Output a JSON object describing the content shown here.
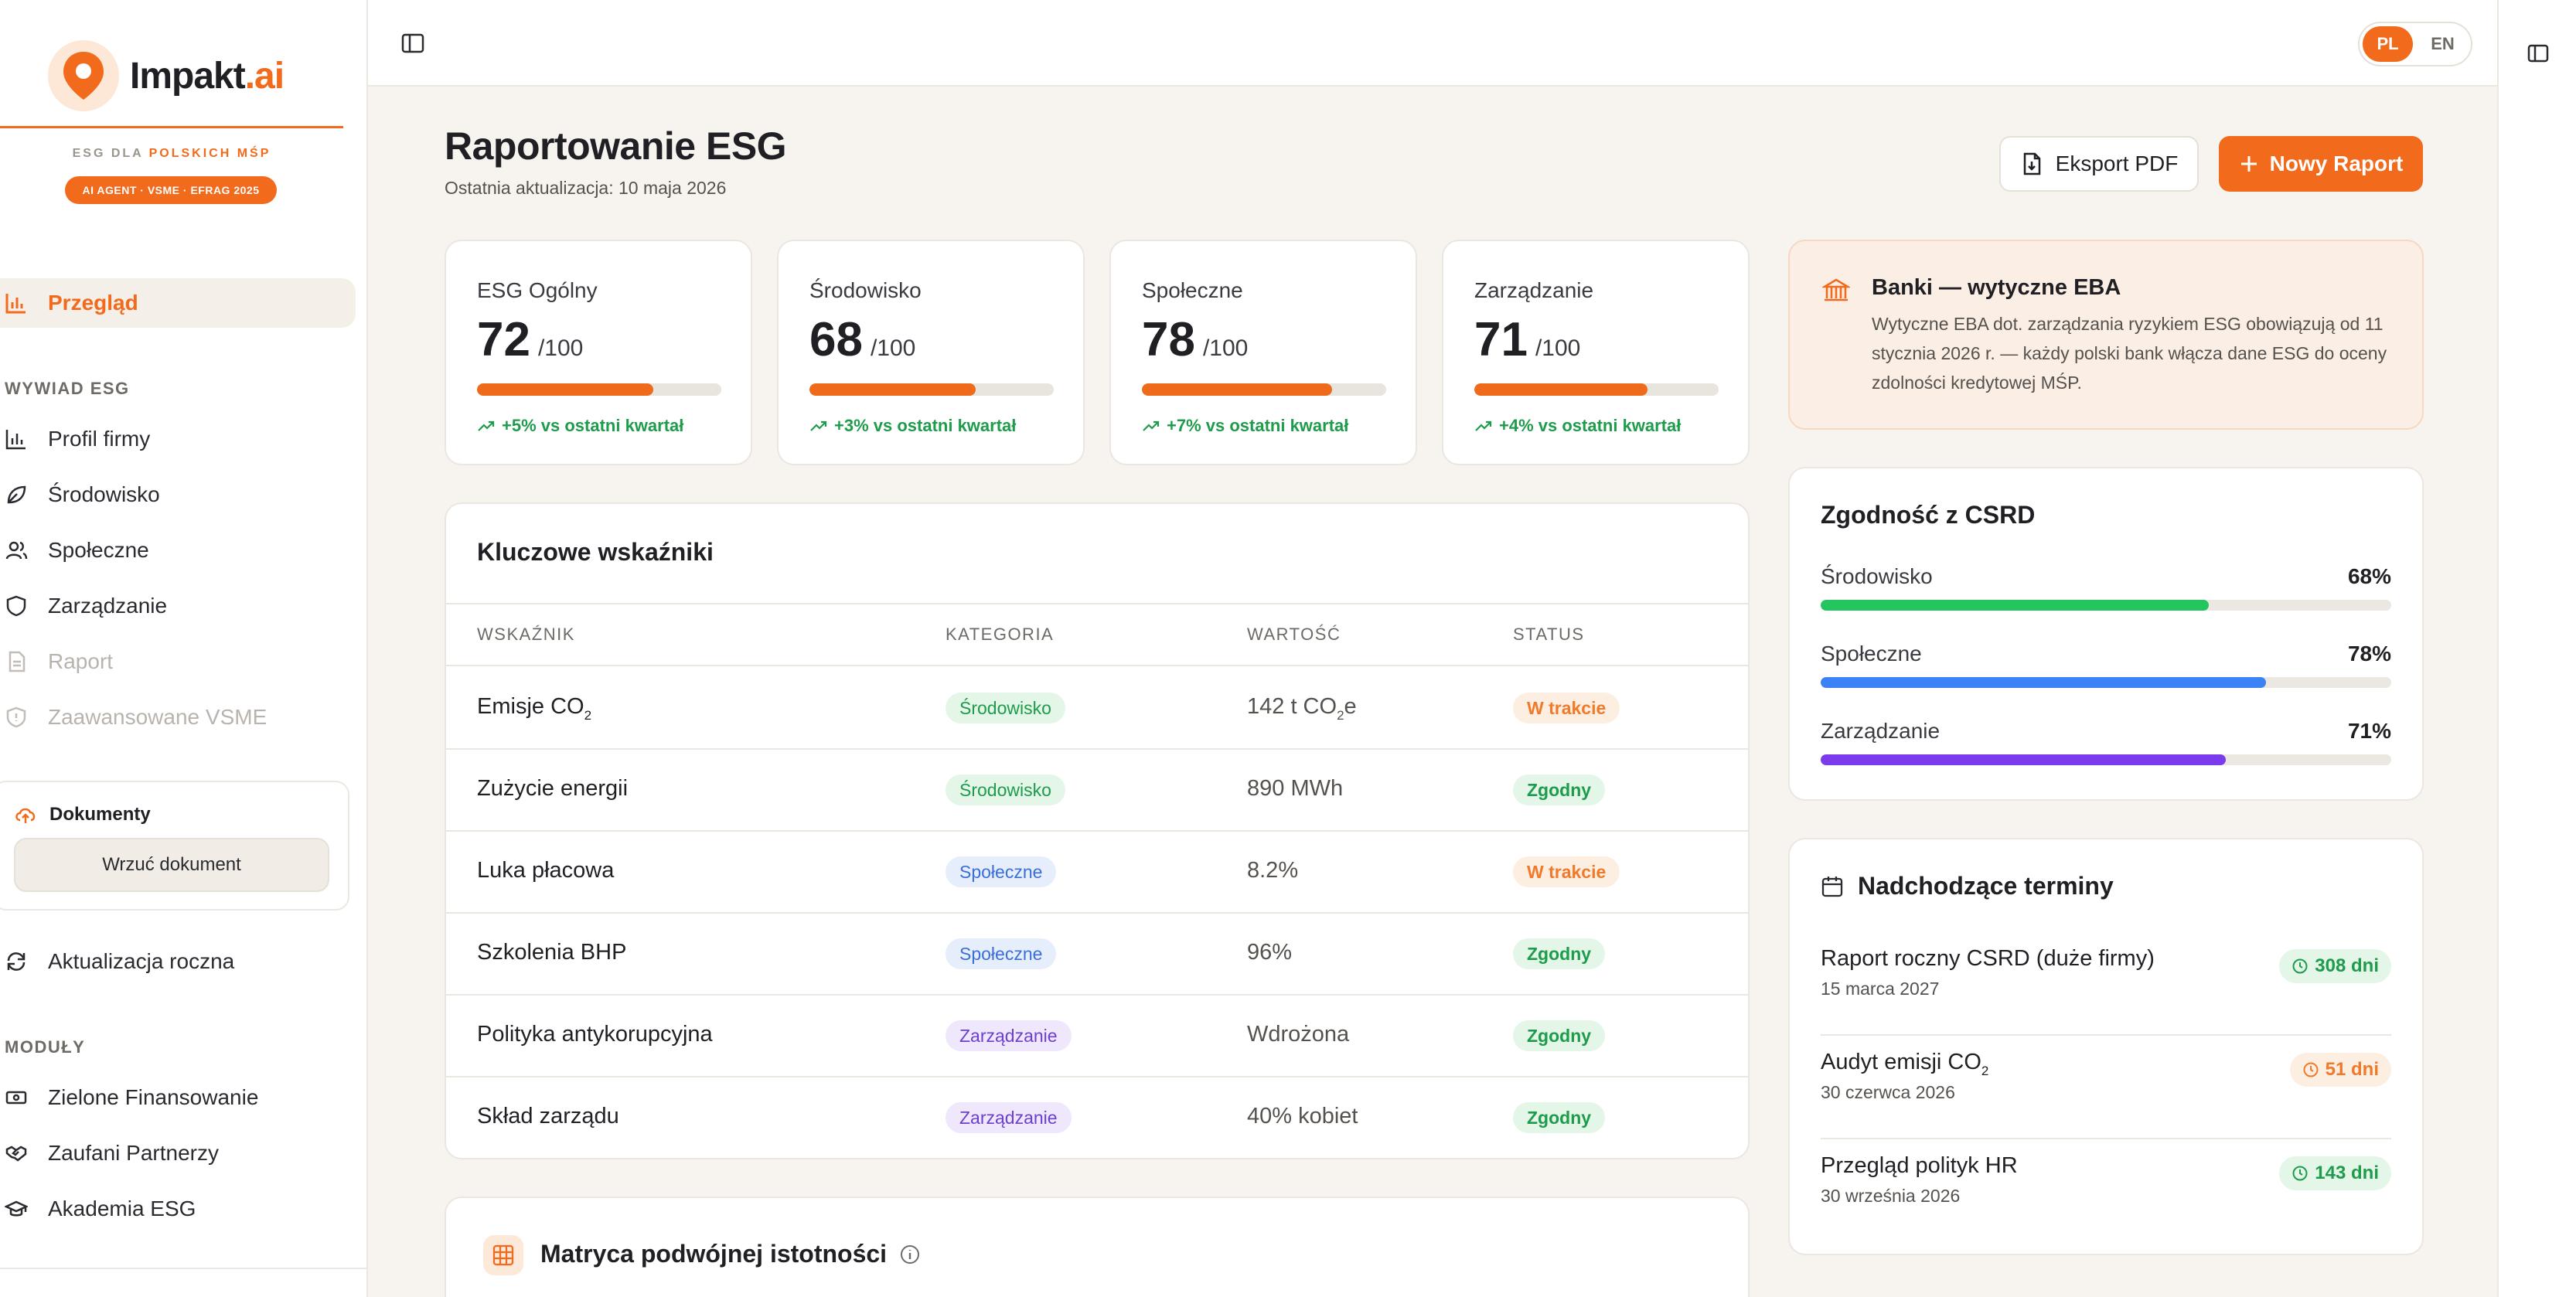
{
  "brand": {
    "name_main": "Impakt",
    "name_accent": ".ai",
    "tagline_prefix": "ESG DLA",
    "tagline_highlight": "POLSKICH MŚP",
    "badge": "AI AGENT · VSME · EFRAG 2025"
  },
  "nav": {
    "overview": "Przegląd",
    "section_interview": "WYWIAD ESG",
    "interview_items": [
      "Profil firmy",
      "Środowisko",
      "Społeczne",
      "Zarządzanie",
      "Raport",
      "Zaawansowane VSME"
    ],
    "documents_title": "Dokumenty",
    "documents_button": "Wrzuć dokument",
    "annual_update": "Aktualizacja roczna",
    "section_modules": "MODUŁY",
    "module_items": [
      "Zielone Finansowanie",
      "Zaufani Partnerzy",
      "Akademia ESG"
    ]
  },
  "lang": {
    "pl": "PL",
    "en": "EN"
  },
  "header": {
    "title": "Raportowanie ESG",
    "subtitle": "Ostatnia aktualizacja: 10 maja 2026",
    "export_label": "Eksport PDF",
    "new_label": "Nowy Raport"
  },
  "kpis": [
    {
      "label": "ESG Ogólny",
      "value": "72",
      "max": "/100",
      "progress": 0.72,
      "trend": "+5% vs ostatni kwartał"
    },
    {
      "label": "Środowisko",
      "value": "68",
      "max": "/100",
      "progress": 0.68,
      "trend": "+3% vs ostatni kwartał"
    },
    {
      "label": "Społeczne",
      "value": "78",
      "max": "/100",
      "progress": 0.78,
      "trend": "+7% vs ostatni kwartał"
    },
    {
      "label": "Zarządzanie",
      "value": "71",
      "max": "/100",
      "progress": 0.71,
      "trend": "+4% vs ostatni kwartał"
    }
  ],
  "bank": {
    "title": "Banki — wytyczne EBA",
    "text": "Wytyczne EBA dot. zarządzania ryzykiem ESG obowiązują od 11 stycznia 2026 r. — każdy polski bank włącza dane ESG do oceny zdolności kredytowej MŚP."
  },
  "indicators": {
    "title": "Kluczowe wskaźniki",
    "headers": [
      "WSKAŹNIK",
      "KATEGORIA",
      "WARTOŚĆ",
      "STATUS"
    ],
    "rows": [
      {
        "name": "Emisje CO",
        "name_sub": "2",
        "category": "Środowisko",
        "value": "142 t CO",
        "value_sub": "2",
        "value_tail": "e",
        "status": "W trakcie"
      },
      {
        "name": "Zużycie energii",
        "name_sub": "",
        "category": "Środowisko",
        "value": "890 MWh",
        "value_sub": "",
        "value_tail": "",
        "status": "Zgodny"
      },
      {
        "name": "Luka płacowa",
        "name_sub": "",
        "category": "Społeczne",
        "value": "8.2%",
        "value_sub": "",
        "value_tail": "",
        "status": "W trakcie"
      },
      {
        "name": "Szkolenia BHP",
        "name_sub": "",
        "category": "Społeczne",
        "value": "96%",
        "value_sub": "",
        "value_tail": "",
        "status": "Zgodny"
      },
      {
        "name": "Polityka antykorupcyjna",
        "name_sub": "",
        "category": "Zarządzanie",
        "value": "Wdrożona",
        "value_sub": "",
        "value_tail": "",
        "status": "Zgodny"
      },
      {
        "name": "Skład zarządu",
        "name_sub": "",
        "category": "Zarządzanie",
        "value": "40% kobiet",
        "value_sub": "",
        "value_tail": "",
        "status": "Zgodny"
      }
    ]
  },
  "csrd": {
    "title": "Zgodność z CSRD",
    "items": [
      {
        "label": "Środowisko",
        "pct": "68%",
        "value": 0.68,
        "color": "#22c55e"
      },
      {
        "label": "Społeczne",
        "pct": "78%",
        "value": 0.78,
        "color": "#3b82f6"
      },
      {
        "label": "Zarządzanie",
        "pct": "71%",
        "value": 0.71,
        "color": "#7c3aed"
      }
    ]
  },
  "deadlines": {
    "title": "Nadchodzące terminy",
    "items": [
      {
        "name": "Raport roczny CSRD (duże firmy)",
        "name_sub": "",
        "date": "15 marca 2027",
        "badge": "308 dni",
        "tone": "green"
      },
      {
        "name": "Audyt emisji CO",
        "name_sub": "2",
        "date": "30 czerwca 2026",
        "badge": "51 dni",
        "tone": "orange"
      },
      {
        "name": "Przegląd polityk HR",
        "name_sub": "",
        "date": "30 września 2026",
        "badge": "143 dni",
        "tone": "green"
      }
    ]
  },
  "matrix": {
    "title": "Matryca podwójnej istotności"
  },
  "colors": {
    "accent": "#f26a1b",
    "env_tag_bg": "#e3f6e8",
    "env_tag_fg": "#1e9b4b",
    "soc_tag_bg": "#e6eefc",
    "soc_tag_fg": "#3b6fd8",
    "gov_tag_bg": "#efe7fb",
    "gov_tag_fg": "#6d3fd0"
  }
}
